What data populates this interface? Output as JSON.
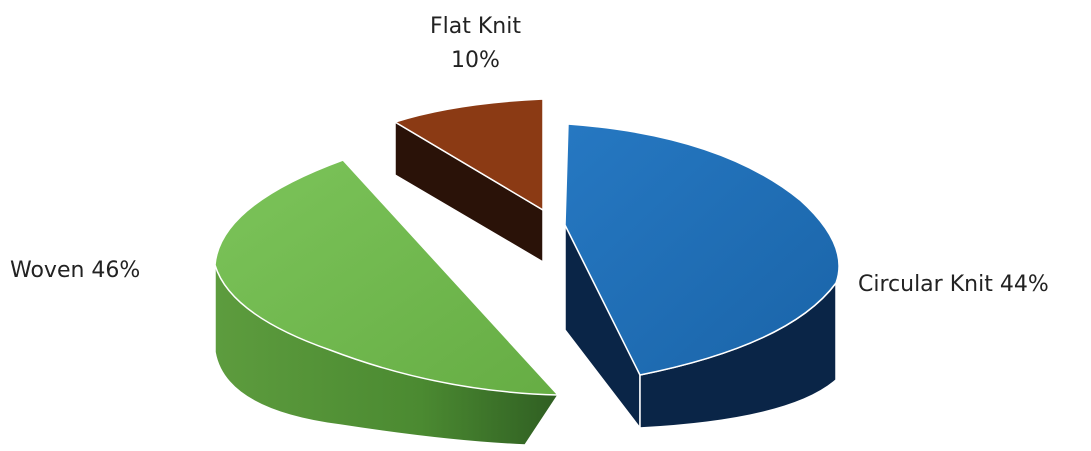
{
  "chart_data": {
    "type": "pie",
    "style": "3d-exploded",
    "slices": [
      {
        "name": "Circular Knit",
        "value": 44,
        "pct_label": "44%",
        "color": "#1f6eb5",
        "side_color": "#0a2547"
      },
      {
        "name": "Woven",
        "value": 46,
        "pct_label": "46%",
        "color": "#6cb648",
        "side_color": "#3e7a2a"
      },
      {
        "name": "Flat Knit",
        "value": 10,
        "pct_label": "10%",
        "color": "#8b3a14",
        "side_color": "#2a1208"
      }
    ],
    "legend": "none",
    "labels": "outside"
  }
}
